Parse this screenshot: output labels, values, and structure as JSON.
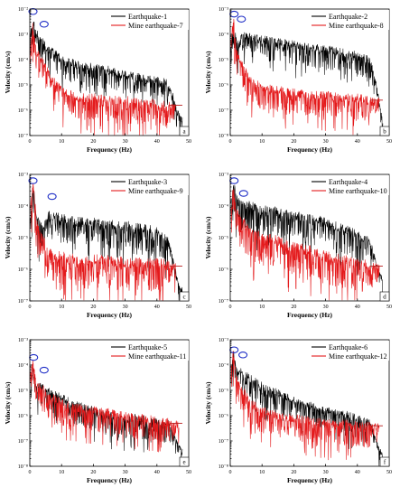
{
  "figure": {
    "description_colors": {
      "earthquake": "#000000",
      "mine": "#e41a1c",
      "peak_marker": "#1f2ec6",
      "reference_line": "#b81d1d"
    }
  },
  "chart_data": [
    {
      "type": "line",
      "panel_label": "a",
      "xlabel": "Frequency (Hz)",
      "ylabel": "Velocity (cm/s)",
      "xlim": [
        0,
        50
      ],
      "x_ticks": [
        0,
        10,
        20,
        30,
        40,
        50
      ],
      "y_scale": "log",
      "y_tick_labels": [
        "10⁻⁷",
        "10⁻⁶",
        "10⁻⁵",
        "10⁻⁴",
        "10⁻³",
        "10⁻²"
      ],
      "y_decades": [
        -7,
        -2
      ],
      "legend_position": "top-right",
      "series": [
        {
          "name": "Earthquake-1",
          "color": "#000000",
          "x": [
            0,
            1,
            2,
            4,
            6,
            10,
            15,
            20,
            25,
            30,
            35,
            40,
            43,
            45,
            47,
            48
          ],
          "y_log10": [
            -3.2,
            -2.4,
            -2.9,
            -3.3,
            -3.6,
            -3.9,
            -4.2,
            -4.3,
            -4.4,
            -4.6,
            -4.7,
            -4.8,
            -4.9,
            -5.4,
            -6.2,
            -6.2
          ]
        },
        {
          "name": "Mine earthquake-7",
          "color": "#e41a1c",
          "x": [
            0,
            1,
            2,
            4,
            6,
            10,
            15,
            20,
            25,
            30,
            35,
            40,
            45,
            46
          ],
          "y_log10": [
            -3.5,
            -2.6,
            -3.7,
            -4.0,
            -4.6,
            -5.2,
            -5.5,
            -5.5,
            -5.6,
            -5.6,
            -5.7,
            -5.7,
            -5.8,
            -5.8
          ]
        }
      ],
      "peak_markers": [
        {
          "x": 1.0,
          "y_log10": -2.1
        },
        {
          "x": 4.5,
          "y_log10": -2.6
        }
      ],
      "reference_line_y_log10": -5.8
    },
    {
      "type": "line",
      "panel_label": "b",
      "xlabel": "Frequency (Hz)",
      "ylabel": "Velocity (cm/s)",
      "xlim": [
        0,
        50
      ],
      "x_ticks": [
        0,
        10,
        20,
        30,
        40,
        50
      ],
      "y_scale": "log",
      "y_tick_labels": [
        "10⁻⁸",
        "10⁻⁷",
        "10⁻⁶",
        "10⁻⁵",
        "10⁻⁴",
        "10⁻³"
      ],
      "y_decades": [
        -8,
        -3
      ],
      "legend_position": "top-right",
      "series": [
        {
          "name": "Earthquake-2",
          "color": "#000000",
          "x": [
            0,
            1,
            2,
            4,
            6,
            10,
            15,
            20,
            25,
            30,
            35,
            40,
            44,
            46,
            48
          ],
          "y_log10": [
            -4.8,
            -3.6,
            -4.3,
            -4.0,
            -4.1,
            -4.2,
            -4.3,
            -4.4,
            -4.5,
            -4.6,
            -4.7,
            -4.8,
            -5.0,
            -6.0,
            -7.5
          ]
        },
        {
          "name": "Mine earthquake-8",
          "color": "#e41a1c",
          "x": [
            0,
            1,
            2,
            4,
            6,
            10,
            15,
            20,
            25,
            30,
            35,
            40,
            45,
            47
          ],
          "y_log10": [
            -4.5,
            -3.4,
            -4.6,
            -5.2,
            -5.8,
            -6.1,
            -6.2,
            -6.3,
            -6.4,
            -6.4,
            -6.5,
            -6.5,
            -6.6,
            -6.6
          ]
        }
      ],
      "peak_markers": [
        {
          "x": 1.2,
          "y_log10": -3.2
        },
        {
          "x": 3.5,
          "y_log10": -3.4
        }
      ],
      "reference_line_y_log10": -6.6
    },
    {
      "type": "line",
      "panel_label": "c",
      "xlabel": "Frequency (Hz)",
      "ylabel": "Velocity (cm/s)",
      "xlim": [
        0,
        50
      ],
      "x_ticks": [
        0,
        10,
        20,
        30,
        40,
        50
      ],
      "y_scale": "log",
      "y_tick_labels": [
        "10⁻⁷",
        "10⁻⁶",
        "10⁻⁵",
        "10⁻⁴",
        "10⁻³"
      ],
      "y_decades": [
        -7,
        -3
      ],
      "legend_position": "top-right",
      "series": [
        {
          "name": "Earthquake-3",
          "color": "#000000",
          "x": [
            0,
            1,
            2,
            4,
            6,
            10,
            15,
            20,
            25,
            30,
            35,
            40,
            43,
            45,
            47,
            48
          ],
          "y_log10": [
            -4.6,
            -3.3,
            -4.3,
            -4.7,
            -4.3,
            -4.4,
            -4.5,
            -4.5,
            -4.6,
            -4.6,
            -4.7,
            -4.8,
            -5.0,
            -5.6,
            -6.6,
            -6.6
          ]
        },
        {
          "name": "Mine earthquake-9",
          "color": "#e41a1c",
          "x": [
            0,
            1,
            2,
            4,
            6,
            10,
            15,
            20,
            25,
            30,
            35,
            40,
            45,
            46
          ],
          "y_log10": [
            -4.2,
            -3.3,
            -4.4,
            -5.0,
            -5.5,
            -5.6,
            -5.7,
            -5.7,
            -5.7,
            -5.8,
            -5.8,
            -5.8,
            -5.9,
            -5.9
          ]
        }
      ],
      "peak_markers": [
        {
          "x": 1.0,
          "y_log10": -3.2
        },
        {
          "x": 7.0,
          "y_log10": -3.7
        }
      ],
      "reference_line_y_log10": -5.9
    },
    {
      "type": "line",
      "panel_label": "d",
      "xlabel": "Frequency (Hz)",
      "ylabel": "Velocity (cm/s)",
      "xlim": [
        0,
        50
      ],
      "x_ticks": [
        0,
        10,
        20,
        30,
        40,
        50
      ],
      "y_scale": "log",
      "y_tick_labels": [
        "10⁻⁷",
        "10⁻⁶",
        "10⁻⁵",
        "10⁻⁴",
        "10⁻³"
      ],
      "y_decades": [
        -7,
        -3
      ],
      "legend_position": "top-right",
      "series": [
        {
          "name": "Earthquake-4",
          "color": "#000000",
          "x": [
            0,
            1,
            2,
            4,
            6,
            10,
            15,
            20,
            25,
            30,
            35,
            40,
            44,
            46,
            48
          ],
          "y_log10": [
            -4.0,
            -3.3,
            -3.8,
            -4.0,
            -4.0,
            -4.1,
            -4.2,
            -4.3,
            -4.4,
            -4.5,
            -4.7,
            -4.9,
            -5.1,
            -5.8,
            -6.4
          ]
        },
        {
          "name": "Mine earthquake-10",
          "color": "#e41a1c",
          "x": [
            0,
            1,
            2,
            4,
            6,
            10,
            15,
            20,
            25,
            30,
            35,
            40,
            45,
            47
          ],
          "y_log10": [
            -4.3,
            -3.4,
            -4.2,
            -4.5,
            -4.8,
            -5.0,
            -5.1,
            -5.3,
            -5.4,
            -5.6,
            -5.7,
            -5.8,
            -5.9,
            -5.9
          ]
        }
      ],
      "peak_markers": [
        {
          "x": 1.2,
          "y_log10": -3.2
        },
        {
          "x": 4.2,
          "y_log10": -3.6
        }
      ],
      "reference_line_y_log10": -5.9
    },
    {
      "type": "line",
      "panel_label": "e",
      "xlabel": "Frequency (Hz)",
      "ylabel": "Velocity (cm/s)",
      "xlim": [
        0,
        50
      ],
      "x_ticks": [
        0,
        10,
        20,
        30,
        40,
        50
      ],
      "y_scale": "log",
      "y_tick_labels": [
        "10⁻⁸",
        "10⁻⁷",
        "10⁻⁶",
        "10⁻⁵",
        "10⁻⁴",
        "10⁻³"
      ],
      "y_decades": [
        -8,
        -3
      ],
      "legend_position": "top-right",
      "series": [
        {
          "name": "Earthquake-5",
          "color": "#000000",
          "x": [
            0,
            1,
            2,
            4,
            6,
            10,
            15,
            20,
            25,
            30,
            35,
            40,
            44,
            46,
            48
          ],
          "y_log10": [
            -4.8,
            -4.2,
            -4.9,
            -4.8,
            -5.0,
            -5.3,
            -5.6,
            -5.8,
            -6.0,
            -6.1,
            -6.1,
            -6.2,
            -6.3,
            -7.0,
            -7.4
          ]
        },
        {
          "name": "Mine earthquake-11",
          "color": "#e41a1c",
          "x": [
            0,
            1,
            2,
            4,
            6,
            10,
            15,
            20,
            25,
            30,
            35,
            40,
            45,
            47
          ],
          "y_log10": [
            -4.5,
            -3.8,
            -4.8,
            -4.9,
            -5.2,
            -5.5,
            -5.7,
            -5.8,
            -5.9,
            -6.0,
            -6.1,
            -6.2,
            -6.3,
            -6.3
          ]
        }
      ],
      "peak_markers": [
        {
          "x": 1.2,
          "y_log10": -3.7
        },
        {
          "x": 4.5,
          "y_log10": -4.2
        }
      ],
      "reference_line_y_log10": -6.3
    },
    {
      "type": "line",
      "panel_label": "f",
      "xlabel": "Frequency (Hz)",
      "ylabel": "Velocity (cm/s)",
      "xlim": [
        0,
        50
      ],
      "x_ticks": [
        0,
        10,
        20,
        30,
        40,
        50
      ],
      "y_scale": "log",
      "y_tick_labels": [
        "10⁻⁸",
        "10⁻⁷",
        "10⁻⁶",
        "10⁻⁵",
        "10⁻⁴",
        "10⁻³"
      ],
      "y_decades": [
        -8,
        -3
      ],
      "legend_position": "top-right",
      "series": [
        {
          "name": "Earthquake-6",
          "color": "#000000",
          "x": [
            0,
            1,
            2,
            4,
            6,
            10,
            15,
            20,
            25,
            30,
            35,
            40,
            44,
            46,
            48
          ],
          "y_log10": [
            -4.5,
            -3.5,
            -4.2,
            -4.3,
            -4.5,
            -4.8,
            -5.1,
            -5.4,
            -5.6,
            -5.8,
            -5.9,
            -6.1,
            -6.3,
            -7.0,
            -7.6
          ]
        },
        {
          "name": "Mine earthquake-12",
          "color": "#e41a1c",
          "x": [
            0,
            1,
            2,
            4,
            6,
            10,
            15,
            20,
            25,
            30,
            35,
            40,
            45,
            47
          ],
          "y_log10": [
            -4.3,
            -3.5,
            -4.6,
            -5.0,
            -5.4,
            -5.8,
            -6.0,
            -6.1,
            -6.2,
            -6.3,
            -6.3,
            -6.4,
            -6.4,
            -6.4
          ]
        }
      ],
      "peak_markers": [
        {
          "x": 1.2,
          "y_log10": -3.4
        },
        {
          "x": 4.0,
          "y_log10": -3.6
        }
      ],
      "reference_line_y_log10": -6.4
    }
  ]
}
